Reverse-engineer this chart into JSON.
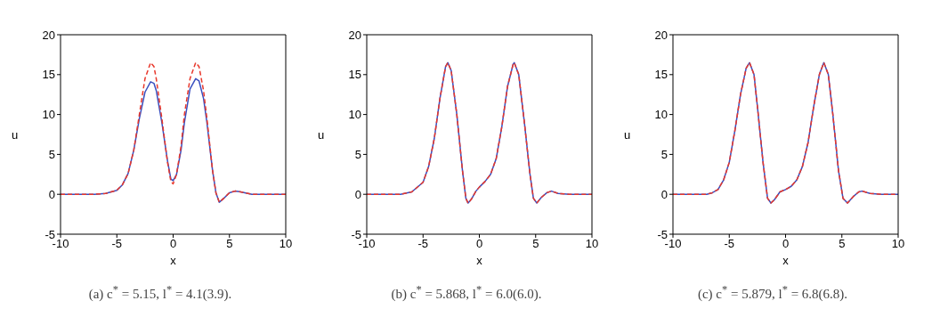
{
  "chart_data": [
    {
      "type": "line",
      "title": "(a) c$^{*}$ = 5.15, l$^{*}$ = 4.1(3.9).",
      "xlabel": "x",
      "ylabel": "u",
      "xlim": [
        -10,
        10
      ],
      "xticks": [
        -10,
        -5,
        0,
        5,
        10
      ],
      "ylim": [
        -5,
        20
      ],
      "yticks": [
        -5,
        0,
        5,
        10,
        15,
        20
      ],
      "grid": false,
      "series": [
        {
          "color": "#3a4fbf",
          "line_style": "solid",
          "x": [
            -10,
            -7,
            -6,
            -5,
            -4.5,
            -4,
            -3.5,
            -3,
            -2.5,
            -2,
            -1.7,
            -1.5,
            -1,
            -0.5,
            -0.2,
            0,
            0.3,
            0.7,
            1,
            1.5,
            2,
            2.3,
            2.7,
            3,
            3.5,
            3.8,
            4.1,
            4.5,
            5,
            5.5,
            6,
            7,
            10
          ],
          "values": [
            0,
            0,
            0.1,
            0.5,
            1.2,
            2.6,
            5.5,
            9.5,
            12.8,
            14.1,
            13.9,
            13,
            9,
            4.2,
            1.9,
            1.7,
            2.5,
            5.5,
            9,
            13.2,
            14.5,
            14.2,
            12,
            9,
            3,
            0.2,
            -1,
            -0.5,
            0.2,
            0.4,
            0.3,
            0,
            0
          ]
        },
        {
          "color": "#e8382c",
          "line_style": "dashed",
          "x": [
            -10,
            -7,
            -6,
            -5,
            -4.5,
            -4,
            -3.5,
            -3,
            -2.5,
            -2,
            -1.7,
            -1.5,
            -1,
            -0.5,
            -0.2,
            0,
            0.3,
            0.7,
            1,
            1.5,
            2,
            2.3,
            2.7,
            3,
            3.5,
            3.8,
            4.1,
            4.5,
            5,
            5.5,
            6,
            7,
            10
          ],
          "values": [
            0,
            0,
            0.1,
            0.5,
            1.2,
            2.6,
            5.5,
            10,
            14.5,
            16.5,
            16,
            14.5,
            9.5,
            4,
            1.6,
            1.3,
            2.5,
            6,
            10,
            14.5,
            16.5,
            16,
            13,
            9.5,
            3,
            0.2,
            -1,
            -0.5,
            0.2,
            0.4,
            0.3,
            0,
            0
          ]
        }
      ]
    },
    {
      "type": "line",
      "title": "(b) c$^{*}$ = 5.868, l$^{*}$ = 6.0(6.0).",
      "xlabel": "x",
      "ylabel": "u",
      "xlim": [
        -10,
        10
      ],
      "xticks": [
        -10,
        -5,
        0,
        5,
        10
      ],
      "ylim": [
        -5,
        20
      ],
      "yticks": [
        -5,
        0,
        5,
        10,
        15,
        20
      ],
      "grid": false,
      "series": [
        {
          "color": "#3a4fbf",
          "line_style": "solid",
          "x": [
            -10,
            -7,
            -6,
            -5,
            -4.5,
            -4,
            -3.5,
            -3,
            -2.8,
            -2.5,
            -2,
            -1.5,
            -1.2,
            -1,
            -0.7,
            -0.3,
            0,
            0.5,
            1,
            1.5,
            2,
            2.5,
            3,
            3.1,
            3.5,
            4,
            4.5,
            4.8,
            5.1,
            5.5,
            6,
            6.4,
            7,
            8,
            10
          ],
          "values": [
            0,
            0,
            0.3,
            1.5,
            3.5,
            7,
            12,
            16,
            16.5,
            15.5,
            10,
            3,
            -0.5,
            -1.1,
            -0.6,
            0.4,
            0.9,
            1.6,
            2.5,
            4.5,
            8.5,
            13.5,
            16.3,
            16.5,
            15,
            9,
            2.5,
            -0.5,
            -1.1,
            -0.4,
            0.2,
            0.4,
            0.1,
            0,
            0
          ]
        },
        {
          "color": "#e8382c",
          "line_style": "dashed",
          "x": [
            -10,
            -7,
            -6,
            -5,
            -4.5,
            -4,
            -3.5,
            -3,
            -2.8,
            -2.5,
            -2,
            -1.5,
            -1.2,
            -1,
            -0.7,
            -0.3,
            0,
            0.5,
            1,
            1.5,
            2,
            2.5,
            3,
            3.1,
            3.5,
            4,
            4.5,
            4.8,
            5.1,
            5.5,
            6,
            6.4,
            7,
            8,
            10
          ],
          "values": [
            0,
            0,
            0.3,
            1.5,
            3.5,
            7,
            12,
            16,
            16.5,
            15.5,
            10,
            3,
            -0.5,
            -1.1,
            -0.6,
            0.4,
            0.9,
            1.6,
            2.5,
            4.5,
            8.5,
            13.5,
            16.3,
            16.5,
            15,
            9,
            2.5,
            -0.5,
            -1.1,
            -0.4,
            0.2,
            0.4,
            0.1,
            0,
            0
          ]
        }
      ]
    },
    {
      "type": "line",
      "title": "(c) c$^{*}$ = 5.879, l$^{*}$ = 6.8(6.8).",
      "xlabel": "x",
      "ylabel": "u",
      "xlim": [
        -10,
        10
      ],
      "xticks": [
        -10,
        -5,
        0,
        5,
        10
      ],
      "ylim": [
        -5,
        20
      ],
      "yticks": [
        -5,
        0,
        5,
        10,
        15,
        20
      ],
      "grid": false,
      "series": [
        {
          "color": "#3a4fbf",
          "line_style": "solid",
          "x": [
            -10,
            -7,
            -6.5,
            -6,
            -5.5,
            -5,
            -4.5,
            -4,
            -3.5,
            -3.2,
            -2.8,
            -2.5,
            -2,
            -1.6,
            -1.3,
            -1,
            -0.5,
            0,
            0.5,
            1,
            1.5,
            2,
            2.5,
            3,
            3.4,
            3.8,
            4.2,
            4.7,
            5.1,
            5.5,
            6,
            6.5,
            6.8,
            7.5,
            8.5,
            10
          ],
          "values": [
            0,
            0,
            0.2,
            0.6,
            1.8,
            4,
            8,
            12.5,
            15.8,
            16.5,
            15,
            11,
            4,
            -0.5,
            -1.1,
            -0.7,
            0.3,
            0.6,
            1,
            1.8,
            3.5,
            6.5,
            11,
            15,
            16.5,
            15,
            10,
            3,
            -0.5,
            -1.1,
            -0.3,
            0.3,
            0.4,
            0.1,
            0,
            0
          ]
        },
        {
          "color": "#e8382c",
          "line_style": "dashed",
          "x": [
            -10,
            -7,
            -6.5,
            -6,
            -5.5,
            -5,
            -4.5,
            -4,
            -3.5,
            -3.2,
            -2.8,
            -2.5,
            -2,
            -1.6,
            -1.3,
            -1,
            -0.5,
            0,
            0.5,
            1,
            1.5,
            2,
            2.5,
            3,
            3.4,
            3.8,
            4.2,
            4.7,
            5.1,
            5.5,
            6,
            6.5,
            6.8,
            7.5,
            8.5,
            10
          ],
          "values": [
            0,
            0,
            0.2,
            0.6,
            1.8,
            4,
            8,
            12.5,
            15.8,
            16.5,
            15,
            11,
            4,
            -0.5,
            -1.1,
            -0.7,
            0.3,
            0.6,
            1,
            1.8,
            3.5,
            6.5,
            11,
            15,
            16.5,
            15,
            10,
            3,
            -0.5,
            -1.1,
            -0.3,
            0.3,
            0.4,
            0.1,
            0,
            0
          ]
        }
      ]
    }
  ]
}
